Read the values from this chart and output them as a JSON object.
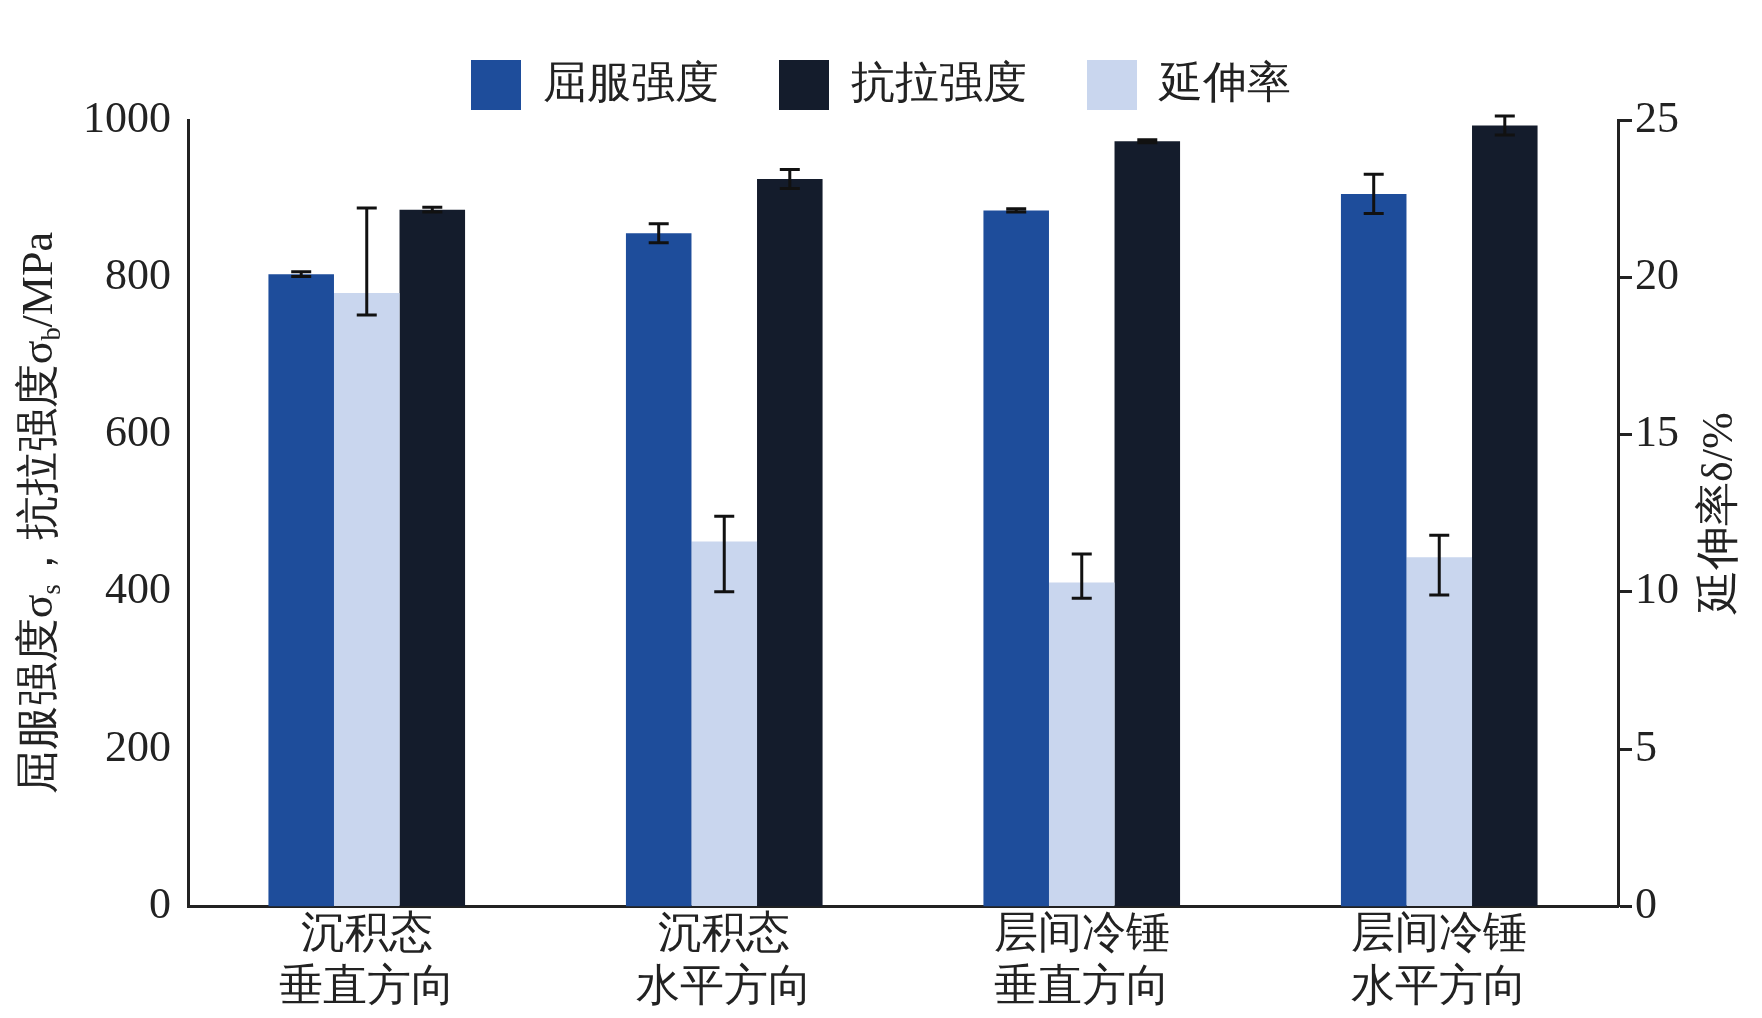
{
  "chart_data": {
    "type": "bar",
    "ylabel": "屈服强度σ$_{s}$，抗拉强度σ$_{b}$/MPa",
    "y2label": "延伸率δ/%",
    "categories": [
      "沉积态垂直方向",
      "沉积态水平方向",
      "层间冷锤垂直方向",
      "层间冷锤水平方向"
    ],
    "series": [
      {
        "name": "屈服强度",
        "color": "#1e4d9b",
        "values": [
          804,
          856,
          885,
          906
        ],
        "errors": [
          3,
          12,
          2,
          25
        ]
      },
      {
        "name": "抗拉强度",
        "color": "#141c2c",
        "values": [
          886,
          925,
          973,
          993
        ],
        "errors": [
          3,
          12,
          2,
          12
        ]
      },
      {
        "name": "延伸率",
        "color": "#c9d6ee",
        "axis": "y2",
        "values": [
          19.5,
          11.6,
          10.3,
          11.1
        ],
        "errors": [
          [
            18.8,
            22.2
          ],
          [
            10.0,
            12.4
          ],
          [
            9.8,
            11.2
          ],
          [
            9.9,
            11.8
          ]
        ]
      }
    ],
    "ylim": [
      0,
      1000
    ],
    "yticks": [
      0,
      200,
      400,
      600,
      800,
      1000
    ],
    "y2lim": [
      0,
      25
    ],
    "y2ticks": [
      0,
      5,
      10,
      15,
      20,
      25
    ],
    "grid": false,
    "legend": "top"
  }
}
